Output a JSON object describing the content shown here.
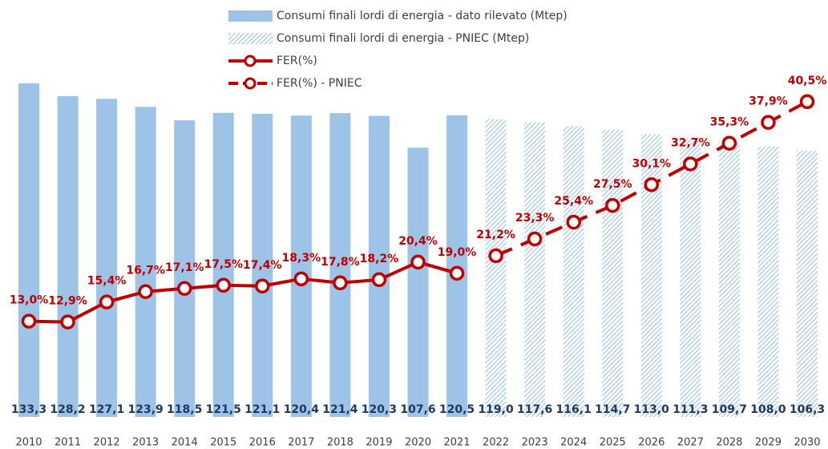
{
  "chart_data": {
    "type": "bar",
    "categories": [
      "2010",
      "2011",
      "2012",
      "2013",
      "2014",
      "2015",
      "2016",
      "2017",
      "2018",
      "2019",
      "2020",
      "2021",
      "2022",
      "2023",
      "2024",
      "2025",
      "2026",
      "2027",
      "2028",
      "2029",
      "2030"
    ],
    "ylim": [
      0,
      140
    ],
    "y2lim": [
      0,
      45
    ],
    "series": [
      {
        "name": "Consumi finali lordi di energia - dato rilevato (Mtep)",
        "type": "bar",
        "color": "#9dc3e6",
        "pattern": "solid",
        "values": [
          133.3,
          128.2,
          127.1,
          123.9,
          118.5,
          121.5,
          121.1,
          120.4,
          121.4,
          120.3,
          107.6,
          120.5,
          null,
          null,
          null,
          null,
          null,
          null,
          null,
          null,
          null
        ],
        "value_labels": [
          "133,3",
          "128,2",
          "127,1",
          "123,9",
          "118,5",
          "121,5",
          "121,1",
          "120,4",
          "121,4",
          "120,3",
          "107,6",
          "120,5",
          null,
          null,
          null,
          null,
          null,
          null,
          null,
          null,
          null
        ]
      },
      {
        "name": "Consumi finali lordi di energia - PNIEC (Mtep)",
        "type": "bar",
        "color": "#9dc3e6",
        "pattern": "hatch",
        "values": [
          null,
          null,
          null,
          null,
          null,
          null,
          null,
          null,
          null,
          null,
          null,
          null,
          119.0,
          117.6,
          116.1,
          114.7,
          113.0,
          111.3,
          109.7,
          108.0,
          106.3
        ],
        "value_labels": [
          null,
          null,
          null,
          null,
          null,
          null,
          null,
          null,
          null,
          null,
          null,
          null,
          "119,0",
          "117,6",
          "116,1",
          "114,7",
          "113,0",
          "111,3",
          "109,7",
          "108,0",
          "106,3"
        ]
      },
      {
        "name": "FER(%)",
        "type": "line",
        "axis": "y2",
        "color": "#c00000",
        "dashed": false,
        "values": [
          13.0,
          12.9,
          15.4,
          16.7,
          17.1,
          17.5,
          17.4,
          18.3,
          17.8,
          18.2,
          20.4,
          19.0,
          null,
          null,
          null,
          null,
          null,
          null,
          null,
          null,
          null
        ],
        "value_labels": [
          "13,0%",
          "12,9%",
          "15,4%",
          "16,7%",
          "17,1%",
          "17,5%",
          "17,4%",
          "18,3%",
          "17,8%",
          "18,2%",
          "20,4%",
          "19,0%",
          null,
          null,
          null,
          null,
          null,
          null,
          null,
          null,
          null
        ]
      },
      {
        "name": "FER(%) - PNIEC",
        "type": "line",
        "axis": "y2",
        "color": "#c00000",
        "dashed": true,
        "values": [
          null,
          null,
          null,
          null,
          null,
          null,
          null,
          null,
          null,
          null,
          null,
          null,
          21.2,
          23.3,
          25.4,
          27.5,
          30.1,
          32.7,
          35.3,
          37.9,
          40.5
        ],
        "value_labels": [
          null,
          null,
          null,
          null,
          null,
          null,
          null,
          null,
          null,
          null,
          null,
          null,
          "21,2%",
          "23,3%",
          "25,4%",
          "27,5%",
          "30,1%",
          "32,7%",
          "35,3%",
          "37,9%",
          "40,5%"
        ]
      }
    ]
  }
}
